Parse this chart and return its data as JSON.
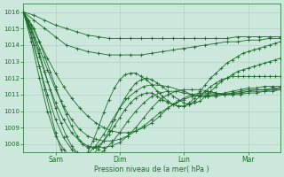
{
  "bg_color": "#cce8dc",
  "grid_color": "#aaccbb",
  "line_color": "#1a6b2a",
  "marker_color": "#1a6b2a",
  "xlabel_text": "Pression niveau de la mer( hPa )",
  "ylim": [
    1007.5,
    1016.5
  ],
  "xlim": [
    0,
    96
  ],
  "yticks": [
    1008,
    1009,
    1010,
    1011,
    1012,
    1013,
    1014,
    1015,
    1016
  ],
  "xtick_positions": [
    12,
    36,
    60,
    84
  ],
  "xtick_labels": [
    "Sam",
    "Dim",
    "Lun",
    "Mar"
  ],
  "series": [
    {
      "x": [
        0,
        4,
        8,
        12,
        16,
        20,
        24,
        28,
        32,
        36,
        40,
        44,
        48,
        52,
        56,
        60,
        64,
        68,
        72,
        76,
        80,
        84,
        88,
        92,
        96
      ],
      "y": [
        1016.0,
        1015.8,
        1015.5,
        1015.2,
        1015.0,
        1014.8,
        1014.6,
        1014.5,
        1014.4,
        1014.4,
        1014.4,
        1014.4,
        1014.4,
        1014.4,
        1014.4,
        1014.4,
        1014.4,
        1014.4,
        1014.4,
        1014.4,
        1014.5,
        1014.5,
        1014.5,
        1014.5,
        1014.5
      ]
    },
    {
      "x": [
        0,
        4,
        8,
        12,
        16,
        20,
        24,
        28,
        32,
        36,
        40,
        44,
        48,
        52,
        56,
        60,
        64,
        68,
        72,
        76,
        80,
        84,
        88,
        92,
        96
      ],
      "y": [
        1016.0,
        1015.5,
        1015.0,
        1014.5,
        1014.0,
        1013.8,
        1013.6,
        1013.5,
        1013.4,
        1013.4,
        1013.4,
        1013.4,
        1013.5,
        1013.6,
        1013.7,
        1013.8,
        1013.9,
        1014.0,
        1014.1,
        1014.2,
        1014.2,
        1014.3,
        1014.3,
        1014.4,
        1014.4
      ]
    },
    {
      "x": [
        0,
        3,
        6,
        9,
        12,
        15,
        18,
        21,
        24,
        27,
        30,
        33,
        36,
        39,
        42,
        45,
        48,
        51,
        54,
        57,
        60,
        63,
        66,
        69,
        72,
        75,
        78,
        81,
        84,
        87,
        90,
        93,
        96
      ],
      "y": [
        1016.0,
        1015.2,
        1014.2,
        1013.2,
        1012.3,
        1011.5,
        1010.8,
        1010.2,
        1009.7,
        1009.3,
        1009.0,
        1008.8,
        1008.7,
        1008.7,
        1008.8,
        1009.0,
        1009.3,
        1009.7,
        1010.2,
        1010.5,
        1010.8,
        1011.0,
        1011.1,
        1011.1,
        1011.1,
        1011.0,
        1011.0,
        1011.1,
        1011.2,
        1011.3,
        1011.3,
        1011.3,
        1011.4
      ]
    },
    {
      "x": [
        0,
        3,
        6,
        9,
        12,
        15,
        18,
        21,
        24,
        27,
        30,
        33,
        36,
        39,
        42,
        45,
        48,
        51,
        54,
        57,
        60,
        63,
        66,
        69,
        72,
        75,
        78,
        81,
        84,
        87,
        90,
        93,
        96
      ],
      "y": [
        1016.0,
        1015.0,
        1013.8,
        1012.5,
        1011.3,
        1010.3,
        1009.5,
        1008.9,
        1008.5,
        1008.3,
        1008.2,
        1008.2,
        1008.3,
        1008.5,
        1008.8,
        1009.1,
        1009.5,
        1009.9,
        1010.2,
        1010.5,
        1010.7,
        1010.9,
        1011.0,
        1011.0,
        1011.0,
        1011.0,
        1011.1,
        1011.1,
        1011.2,
        1011.2,
        1011.2,
        1011.3,
        1011.3
      ]
    },
    {
      "x": [
        0,
        3,
        6,
        9,
        12,
        15,
        18,
        21,
        24,
        27,
        30,
        33,
        36,
        39,
        42,
        45,
        48,
        51,
        54,
        57,
        60,
        63,
        66,
        69,
        72,
        75,
        78,
        81,
        84,
        87,
        90,
        93,
        96
      ],
      "y": [
        1016.0,
        1014.8,
        1013.3,
        1011.8,
        1010.5,
        1009.5,
        1008.7,
        1008.2,
        1007.9,
        1007.8,
        1007.8,
        1007.9,
        1008.1,
        1008.5,
        1009.0,
        1009.6,
        1010.2,
        1010.7,
        1011.0,
        1011.2,
        1011.3,
        1011.3,
        1011.3,
        1011.2,
        1011.1,
        1011.0,
        1011.0,
        1011.0,
        1011.1,
        1011.1,
        1011.2,
        1011.2,
        1011.3
      ]
    },
    {
      "x": [
        0,
        3,
        6,
        9,
        12,
        15,
        18,
        21,
        24,
        27,
        30,
        33,
        36,
        39,
        42,
        45,
        48,
        51,
        54,
        57,
        60,
        63,
        66,
        69,
        72,
        75,
        78,
        81,
        84,
        87,
        90,
        93,
        96
      ],
      "y": [
        1016.0,
        1014.5,
        1012.7,
        1011.0,
        1009.5,
        1008.4,
        1007.7,
        1007.3,
        1007.2,
        1007.3,
        1007.6,
        1008.1,
        1008.7,
        1009.4,
        1010.0,
        1010.5,
        1010.9,
        1011.1,
        1011.2,
        1011.2,
        1011.1,
        1011.0,
        1010.9,
        1010.9,
        1010.9,
        1011.0,
        1011.1,
        1011.2,
        1011.3,
        1011.3,
        1011.3,
        1011.4,
        1011.4
      ]
    },
    {
      "x": [
        0,
        3,
        6,
        9,
        12,
        15,
        18,
        21,
        24,
        27,
        30,
        33,
        36,
        39,
        42,
        45,
        48,
        54,
        60,
        63,
        66,
        69,
        72,
        75,
        78,
        81,
        84,
        87,
        90,
        93,
        96
      ],
      "y": [
        1016.0,
        1014.2,
        1012.0,
        1010.0,
        1008.5,
        1007.7,
        1007.2,
        1007.2,
        1007.4,
        1007.9,
        1008.6,
        1009.4,
        1010.2,
        1010.8,
        1011.2,
        1011.5,
        1011.6,
        1011.5,
        1011.2,
        1011.0,
        1010.9,
        1010.9,
        1011.0,
        1011.1,
        1011.2,
        1011.3,
        1011.4,
        1011.4,
        1011.5,
        1011.5,
        1011.5
      ]
    },
    {
      "x": [
        0,
        2,
        4,
        6,
        8,
        10,
        12,
        14,
        16,
        18,
        20,
        22,
        24,
        26,
        28,
        30,
        32,
        34,
        36,
        38,
        40,
        42,
        44,
        46,
        48,
        50,
        52,
        54,
        56,
        58,
        60,
        62,
        64,
        66,
        68,
        70,
        72,
        74,
        76,
        78,
        80,
        82,
        84,
        86,
        88,
        90,
        92,
        94,
        96
      ],
      "y": [
        1016.0,
        1015.5,
        1015.0,
        1014.2,
        1013.3,
        1012.4,
        1011.5,
        1010.6,
        1009.8,
        1009.1,
        1008.5,
        1008.0,
        1007.8,
        1007.8,
        1007.9,
        1008.2,
        1008.6,
        1009.1,
        1009.6,
        1010.1,
        1010.5,
        1010.8,
        1011.0,
        1011.1,
        1011.1,
        1010.9,
        1010.7,
        1010.5,
        1010.4,
        1010.3,
        1010.3,
        1010.4,
        1010.6,
        1010.9,
        1011.2,
        1011.5,
        1011.7,
        1011.9,
        1012.0,
        1012.1,
        1012.1,
        1012.1,
        1012.1,
        1012.1,
        1012.1,
        1012.1,
        1012.1,
        1012.1,
        1012.1
      ]
    },
    {
      "x": [
        0,
        2,
        4,
        6,
        8,
        10,
        12,
        14,
        16,
        18,
        20,
        22,
        24,
        26,
        28,
        30,
        32,
        34,
        36,
        38,
        40,
        42,
        44,
        46,
        48,
        50,
        52,
        54,
        56,
        58,
        60,
        62,
        64,
        66,
        68,
        70,
        72,
        74,
        76,
        78,
        80,
        82,
        84,
        86,
        88,
        90,
        92,
        94,
        96
      ],
      "y": [
        1016.0,
        1015.3,
        1014.5,
        1013.5,
        1012.4,
        1011.3,
        1010.2,
        1009.3,
        1008.5,
        1007.9,
        1007.5,
        1007.3,
        1007.2,
        1007.4,
        1007.7,
        1008.2,
        1008.8,
        1009.5,
        1010.2,
        1010.8,
        1011.3,
        1011.7,
        1011.9,
        1012.0,
        1011.9,
        1011.7,
        1011.5,
        1011.2,
        1010.9,
        1010.7,
        1010.5,
        1010.4,
        1010.5,
        1010.6,
        1010.9,
        1011.2,
        1011.5,
        1011.8,
        1012.0,
        1012.2,
        1012.4,
        1012.5,
        1012.6,
        1012.7,
        1012.8,
        1012.9,
        1013.0,
        1013.1,
        1013.2
      ]
    },
    {
      "x": [
        0,
        2,
        4,
        6,
        8,
        10,
        12,
        14,
        16,
        18,
        20,
        22,
        24,
        26,
        28,
        30,
        32,
        34,
        36,
        38,
        40,
        42,
        44,
        46,
        48,
        50,
        52,
        54,
        56,
        58,
        60,
        62,
        64,
        66,
        68,
        70,
        72,
        74,
        76,
        78,
        80,
        82,
        84,
        86,
        88,
        90,
        92,
        94,
        96
      ],
      "y": [
        1016.0,
        1015.1,
        1014.0,
        1012.7,
        1011.3,
        1010.0,
        1008.7,
        1007.7,
        1007.0,
        1006.7,
        1006.7,
        1007.0,
        1007.5,
        1008.2,
        1009.0,
        1009.9,
        1010.7,
        1011.4,
        1011.9,
        1012.2,
        1012.3,
        1012.3,
        1012.1,
        1011.9,
        1011.6,
        1011.2,
        1010.9,
        1010.6,
        1010.4,
        1010.3,
        1010.3,
        1010.5,
        1010.8,
        1011.2,
        1011.6,
        1012.0,
        1012.3,
        1012.6,
        1012.9,
        1013.1,
        1013.3,
        1013.5,
        1013.6,
        1013.7,
        1013.8,
        1013.9,
        1014.0,
        1014.1,
        1014.2
      ]
    }
  ]
}
